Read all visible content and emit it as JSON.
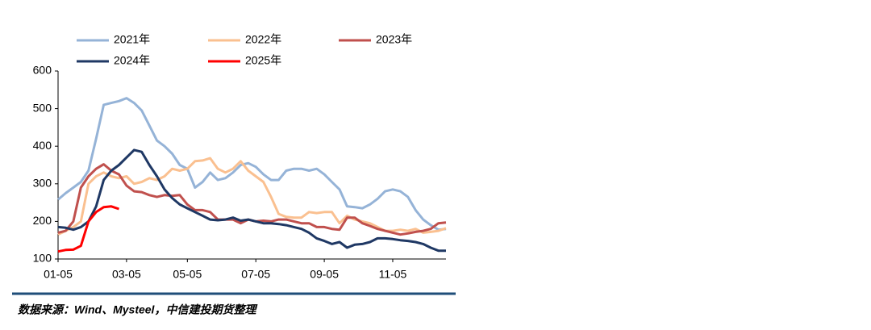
{
  "chart_data": {
    "type": "line",
    "categories": [
      "01-05",
      null,
      null,
      null,
      null,
      null,
      null,
      null,
      null,
      "03-05",
      null,
      null,
      null,
      null,
      null,
      null,
      null,
      "05-05",
      null,
      null,
      null,
      null,
      null,
      null,
      null,
      null,
      "07-05",
      null,
      null,
      null,
      null,
      null,
      null,
      null,
      null,
      "09-05",
      null,
      null,
      null,
      null,
      null,
      null,
      null,
      null,
      "11-05",
      null,
      null,
      null,
      null,
      null,
      null,
      null
    ],
    "series": [
      {
        "name": "2021年",
        "color": "#95b3d7",
        "values": [
          258,
          275,
          290,
          305,
          335,
          420,
          510,
          515,
          520,
          528,
          515,
          495,
          455,
          415,
          400,
          380,
          350,
          340,
          290,
          305,
          330,
          310,
          315,
          330,
          350,
          355,
          345,
          325,
          310,
          310,
          335,
          340,
          340,
          335,
          340,
          325,
          305,
          285,
          240,
          238,
          235,
          245,
          260,
          280,
          285,
          280,
          265,
          230,
          205,
          190,
          178,
          180
        ]
      },
      {
        "name": "2022年",
        "color": "#fac090",
        "values": [
          165,
          175,
          185,
          200,
          300,
          320,
          330,
          320,
          315,
          320,
          300,
          305,
          315,
          310,
          320,
          340,
          335,
          340,
          360,
          362,
          368,
          340,
          330,
          340,
          360,
          335,
          320,
          305,
          265,
          220,
          212,
          210,
          210,
          225,
          222,
          225,
          225,
          195,
          215,
          205,
          200,
          195,
          185,
          175,
          175,
          178,
          175,
          180,
          170,
          172,
          175,
          182
        ]
      },
      {
        "name": "2023年",
        "color": "#c0504d",
        "values": [
          170,
          175,
          200,
          290,
          320,
          340,
          352,
          335,
          325,
          295,
          280,
          278,
          270,
          265,
          270,
          268,
          270,
          245,
          230,
          230,
          225,
          205,
          205,
          205,
          195,
          205,
          200,
          202,
          200,
          205,
          205,
          200,
          195,
          195,
          185,
          185,
          180,
          178,
          210,
          210,
          195,
          188,
          180,
          175,
          170,
          165,
          168,
          172,
          175,
          180,
          195,
          197
        ]
      },
      {
        "name": "2024年",
        "color": "#1f3864",
        "values": [
          185,
          183,
          178,
          185,
          200,
          240,
          310,
          335,
          350,
          370,
          390,
          385,
          350,
          320,
          285,
          262,
          245,
          235,
          225,
          215,
          205,
          203,
          205,
          210,
          202,
          205,
          200,
          195,
          195,
          193,
          190,
          185,
          180,
          170,
          155,
          148,
          140,
          145,
          130,
          138,
          140,
          145,
          155,
          155,
          153,
          150,
          148,
          145,
          140,
          130,
          122,
          122
        ]
      },
      {
        "name": "2025年",
        "color": "#ff0000",
        "values": [
          120,
          124,
          125,
          135,
          200,
          225,
          238,
          240,
          233,
          null,
          null,
          null,
          null,
          null,
          null,
          null,
          null,
          null,
          null,
          null,
          null,
          null,
          null,
          null,
          null,
          null,
          null,
          null,
          null,
          null,
          null,
          null,
          null,
          null,
          null,
          null,
          null,
          null,
          null,
          null,
          null,
          null,
          null,
          null,
          null,
          null,
          null,
          null,
          null,
          null,
          null,
          null
        ]
      }
    ],
    "ylim": [
      100,
      600
    ],
    "yticks": [
      100,
      200,
      300,
      400,
      500,
      600
    ],
    "source": "数据来源：Wind、Mysteel，中信建投期货整理"
  }
}
